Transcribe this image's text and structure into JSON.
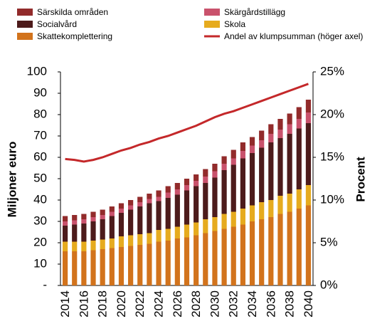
{
  "chart_data": {
    "type": "bar",
    "categories": [
      2014,
      null,
      2016,
      null,
      2018,
      null,
      2020,
      null,
      2022,
      null,
      2024,
      null,
      2026,
      null,
      2028,
      null,
      2030,
      null,
      2032,
      null,
      2034,
      null,
      2036,
      null,
      2038,
      null,
      2040
    ],
    "stacked": true,
    "y_label": "Miljoner euro",
    "y2_label": "Procent",
    "ylim": [
      0,
      100
    ],
    "yticks": [
      {
        "value": 0,
        "label": "-"
      },
      10,
      20,
      30,
      40,
      50,
      60,
      70,
      80,
      90,
      100
    ],
    "y2lim": [
      0,
      25
    ],
    "y2ticks": [
      {
        "value": 0,
        "label": "0%"
      },
      {
        "value": 5,
        "label": "5%"
      },
      {
        "value": 10,
        "label": "10%"
      },
      {
        "value": 15,
        "label": "15%"
      },
      {
        "value": 20,
        "label": "20%"
      },
      {
        "value": 25,
        "label": "25%"
      }
    ],
    "series": [
      {
        "name": "Skattekomplettering",
        "color": "#d2731c",
        "values": [
          16,
          16,
          16,
          16.5,
          17,
          17.5,
          18,
          18.5,
          19,
          19.5,
          20.5,
          21,
          22,
          22.5,
          23.5,
          24.5,
          25.5,
          26.5,
          27.5,
          28.5,
          30,
          31,
          32,
          33.5,
          34.5,
          36,
          37.5
        ]
      },
      {
        "name": "Skola",
        "color": "#e6ab1e",
        "values": [
          4.5,
          4.5,
          4.5,
          4.5,
          4.5,
          4.5,
          5,
          5,
          5,
          5,
          5.5,
          5.5,
          5.5,
          6,
          6,
          6.5,
          6.5,
          7,
          7,
          7.5,
          7.5,
          8,
          8,
          8.5,
          8.5,
          9,
          9.5
        ]
      },
      {
        "name": "Socialvård",
        "color": "#4d1b1b",
        "values": [
          7.5,
          8,
          8.5,
          9,
          9.5,
          10.5,
          11,
          12,
          13,
          14,
          13.5,
          14.5,
          15,
          16,
          17,
          17,
          18.5,
          20.5,
          22,
          23.5,
          24.5,
          25.5,
          27,
          27,
          28,
          28.5,
          29
        ]
      },
      {
        "name": "Skärgårdstillägg",
        "color": "#c9526c",
        "values": [
          2,
          2,
          2,
          2,
          2,
          2,
          2,
          2,
          2,
          2,
          2,
          2.5,
          2.5,
          2.5,
          2.5,
          3,
          3,
          3,
          3,
          3.5,
          3.5,
          3.5,
          4,
          4,
          4.5,
          4.5,
          5
        ]
      },
      {
        "name": "Särskilda områden",
        "color": "#922b2b",
        "values": [
          2.5,
          2.5,
          2.5,
          2.5,
          2.5,
          2.5,
          2.5,
          2.5,
          2.5,
          2.5,
          3,
          3,
          3,
          3,
          3,
          3.5,
          3.5,
          3.5,
          4,
          4,
          4,
          4.5,
          4.5,
          5,
          5,
          5.5,
          6
        ]
      },
      {
        "name": "Andel av klumpsumman (höger axel)",
        "type": "line",
        "axis": "y2",
        "color": "#c4282a",
        "values": [
          14.8,
          14.7,
          14.5,
          14.7,
          15.0,
          15.4,
          15.8,
          16.1,
          16.5,
          16.8,
          17.2,
          17.5,
          17.9,
          18.3,
          18.7,
          19.2,
          19.7,
          20.1,
          20.4,
          20.8,
          21.2,
          21.6,
          22.0,
          22.4,
          22.8,
          23.2,
          23.6
        ]
      }
    ]
  }
}
